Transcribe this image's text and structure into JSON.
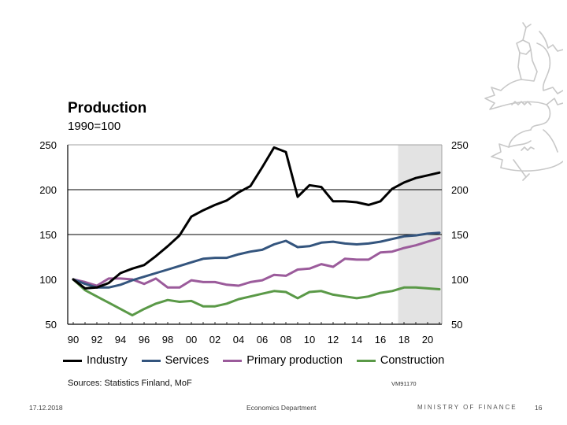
{
  "slide": {
    "title": "Production",
    "subtitle": "1990=100",
    "sources": "Sources: Statistics Finland, MoF",
    "chart_code": "VM91170",
    "footer": {
      "date": "17.12.2018",
      "department": "Economics Department",
      "ministry": "MINISTRY OF FINANCE",
      "page": "16"
    },
    "logo_icon": "finnish-lion-coat-of-arms-icon"
  },
  "chart_data": {
    "type": "line",
    "title": "Production",
    "subtitle": "1990=100",
    "xlabel": "",
    "ylabel": "",
    "x": [
      1990,
      1991,
      1992,
      1993,
      1994,
      1995,
      1996,
      1997,
      1998,
      1999,
      2000,
      2001,
      2002,
      2003,
      2004,
      2005,
      2006,
      2007,
      2008,
      2009,
      2010,
      2011,
      2012,
      2013,
      2014,
      2015,
      2016,
      2017,
      2018,
      2019,
      2020,
      2021
    ],
    "x_tick_labels": [
      "90",
      "92",
      "94",
      "96",
      "98",
      "00",
      "02",
      "04",
      "06",
      "08",
      "10",
      "12",
      "14",
      "16",
      "18",
      "20"
    ],
    "y_ticks": [
      50,
      100,
      150,
      200,
      250
    ],
    "ylim": [
      50,
      250
    ],
    "xlim": [
      1989.1,
      2021.8
    ],
    "gridlines": [
      150,
      200
    ],
    "forecast_shading_from": 2017.5,
    "dual_axis_labels": true,
    "legend_position": "bottom",
    "series": [
      {
        "name": "Industry",
        "color": "#000000",
        "values": [
          100,
          90,
          91,
          96,
          107,
          112,
          116,
          126,
          137,
          149,
          170,
          177,
          183,
          188,
          197,
          204,
          225,
          247,
          242,
          192,
          205,
          203,
          187,
          187,
          186,
          183,
          187,
          201,
          208,
          213,
          216,
          219
        ]
      },
      {
        "name": "Services",
        "color": "#34557e",
        "values": [
          100,
          95,
          91,
          91,
          94,
          99,
          103,
          107,
          111,
          115,
          119,
          123,
          124,
          124,
          128,
          131,
          133,
          139,
          143,
          136,
          137,
          141,
          142,
          140,
          139,
          140,
          142,
          145,
          148,
          149,
          151,
          152
        ]
      },
      {
        "name": "Primary production",
        "color": "#9b5b9b",
        "values": [
          100,
          97,
          93,
          101,
          101,
          100,
          95,
          101,
          91,
          91,
          99,
          97,
          97,
          94,
          93,
          97,
          99,
          105,
          104,
          111,
          112,
          117,
          114,
          123,
          122,
          122,
          130,
          131,
          135,
          138,
          142,
          146
        ]
      },
      {
        "name": "Construction",
        "color": "#5a9947",
        "values": [
          100,
          88,
          81,
          74,
          67,
          60,
          67,
          73,
          77,
          75,
          76,
          70,
          70,
          73,
          78,
          81,
          84,
          87,
          86,
          79,
          86,
          87,
          83,
          81,
          79,
          81,
          85,
          87,
          91,
          91,
          90,
          89
        ]
      }
    ]
  }
}
